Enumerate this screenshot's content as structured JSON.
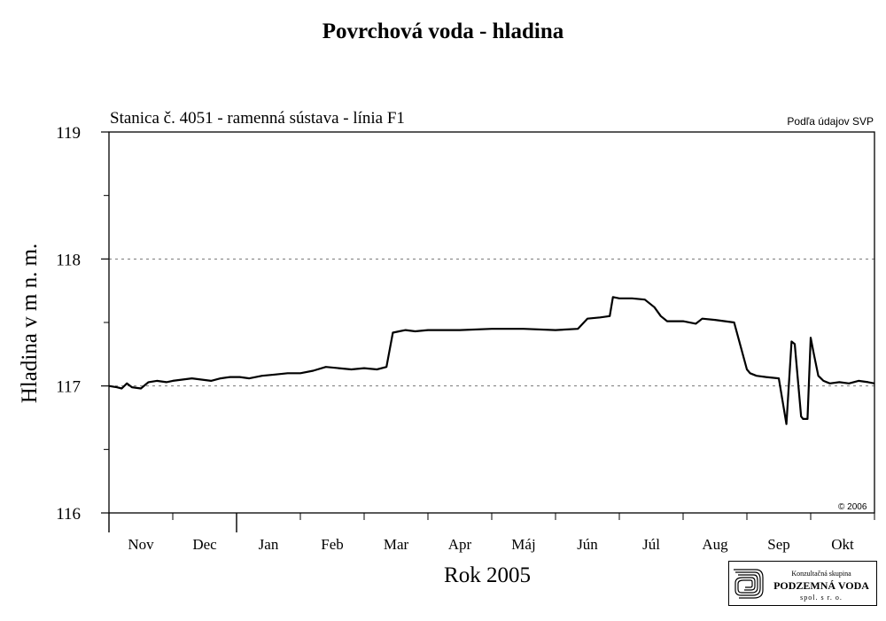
{
  "page_title": "Povrchová voda - hladina",
  "subtitle": "Stanica č. 4051 - ramenná sústava - línia F1",
  "source_note": "Podľa údajov SVP",
  "copyright": "© 2006",
  "logo": {
    "line1": "Konzultačná skupina",
    "line2": "PODZEMNÁ VODA",
    "line3": "spol. s r. o."
  },
  "chart_data": {
    "type": "line",
    "title": "Stanica č. 4051 - ramenná sústava - línia F1",
    "xlabel": "Rok 2005",
    "ylabel": "Hladina v m n. m.",
    "ylim": [
      116,
      119
    ],
    "yticks": [
      116,
      117,
      118,
      119
    ],
    "ytick_labels": [
      "116",
      "117",
      "118",
      "119"
    ],
    "ygrid_dashed": [
      117,
      118
    ],
    "xlim": [
      0,
      12
    ],
    "month_labels": [
      "Nov",
      "Dec",
      "Jan",
      "Feb",
      "Mar",
      "Apr",
      "Máj",
      "Jún",
      "Júl",
      "Aug",
      "Sep",
      "Okt"
    ],
    "year_boundary_tick": 2,
    "legend": "none",
    "series": [
      {
        "x": [
          0.0,
          0.12,
          0.2,
          0.28,
          0.36,
          0.5,
          0.62,
          0.75,
          0.9,
          1.0,
          1.15,
          1.3,
          1.45,
          1.6,
          1.75,
          1.9,
          2.05,
          2.2,
          2.4,
          2.6,
          2.8,
          3.0,
          3.2,
          3.4,
          3.6,
          3.8,
          4.0,
          4.2,
          4.35,
          4.45,
          4.55,
          4.65,
          4.8,
          5.0,
          5.5,
          6.0,
          6.5,
          7.0,
          7.35,
          7.5,
          7.7,
          7.85,
          7.9,
          8.0,
          8.2,
          8.4,
          8.55,
          8.65,
          8.75,
          9.0,
          9.2,
          9.3,
          9.5,
          9.8,
          10.0,
          10.05,
          10.15,
          10.3,
          10.5,
          10.62,
          10.7,
          10.75,
          10.85,
          10.88,
          10.95,
          11.0,
          11.05,
          11.12,
          11.2,
          11.3,
          11.45,
          11.6,
          11.75,
          11.9,
          12.0
        ],
        "y": [
          117.0,
          116.99,
          116.98,
          117.02,
          116.99,
          116.98,
          117.03,
          117.04,
          117.03,
          117.04,
          117.05,
          117.06,
          117.05,
          117.04,
          117.06,
          117.07,
          117.07,
          117.06,
          117.08,
          117.09,
          117.1,
          117.1,
          117.12,
          117.15,
          117.14,
          117.13,
          117.14,
          117.13,
          117.15,
          117.42,
          117.43,
          117.44,
          117.43,
          117.44,
          117.44,
          117.45,
          117.45,
          117.44,
          117.45,
          117.53,
          117.54,
          117.55,
          117.7,
          117.69,
          117.69,
          117.68,
          117.62,
          117.55,
          117.51,
          117.51,
          117.49,
          117.53,
          117.52,
          117.5,
          117.13,
          117.1,
          117.08,
          117.07,
          117.06,
          116.7,
          117.35,
          117.33,
          116.76,
          116.74,
          116.74,
          117.38,
          117.25,
          117.08,
          117.04,
          117.02,
          117.03,
          117.02,
          117.04,
          117.03,
          117.02
        ]
      }
    ]
  }
}
